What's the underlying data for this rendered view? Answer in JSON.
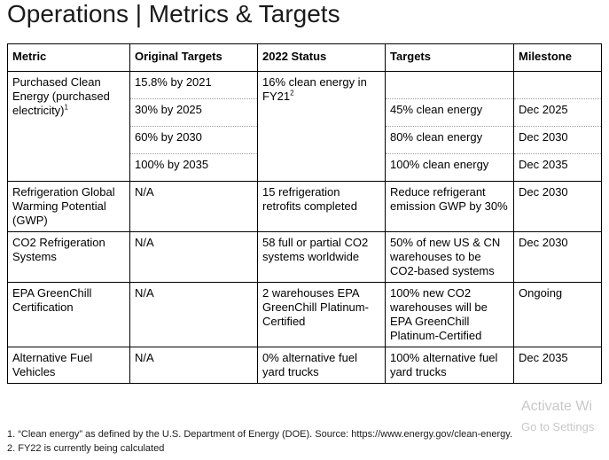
{
  "title": "Operations | Metrics & Targets",
  "headers": [
    "Metric",
    "Original Targets",
    "2022 Status",
    "Targets",
    "Milestone"
  ],
  "clean_energy": {
    "metric": "Purchased Clean Energy (purchased electricity)",
    "metric_sup": "1",
    "status": "16% clean energy in FY21",
    "status_sup": "2",
    "rows": [
      {
        "original": "15.8% by 2021",
        "target": "",
        "milestone": ""
      },
      {
        "original": "30% by 2025",
        "target": "45% clean energy",
        "milestone": "Dec 2025"
      },
      {
        "original": "60% by 2030",
        "target": "80% clean energy",
        "milestone": "Dec 2030"
      },
      {
        "original": "100% by 2035",
        "target": "100% clean energy",
        "milestone": "Dec 2035"
      }
    ]
  },
  "rows": [
    {
      "metric": "Refrigeration Global Warming Potential (GWP)",
      "original": "N/A",
      "status": "15 refrigeration retrofits completed",
      "target": "Reduce refrigerant emission GWP by 30%",
      "milestone": "Dec 2030"
    },
    {
      "metric": "CO2 Refrigeration Systems",
      "original": "N/A",
      "status": "58 full or partial CO2 systems worldwide",
      "target": "50% of new US & CN warehouses to be CO2-based systems",
      "milestone": "Dec 2030"
    },
    {
      "metric": "EPA GreenChill Certification",
      "original": "N/A",
      "status": "2 warehouses EPA GreenChill Platinum-Certified",
      "target": "100% new CO2 warehouses will be EPA GreenChill Platinum-Certified",
      "milestone": "Ongoing"
    },
    {
      "metric": "Alternative Fuel Vehicles",
      "original": "N/A",
      "status": "0% alternative fuel yard trucks",
      "target": "100% alternative fuel yard trucks",
      "milestone": "Dec 2035"
    }
  ],
  "footnotes": [
    "1. “Clean energy” as defined by the U.S. Department of Energy (DOE). Source: https://www.energy.gov/clean-energy.",
    "2. FY22 is currently being calculated"
  ],
  "watermark": {
    "line1": "Activate Wi",
    "line2": "Go to Settings"
  }
}
